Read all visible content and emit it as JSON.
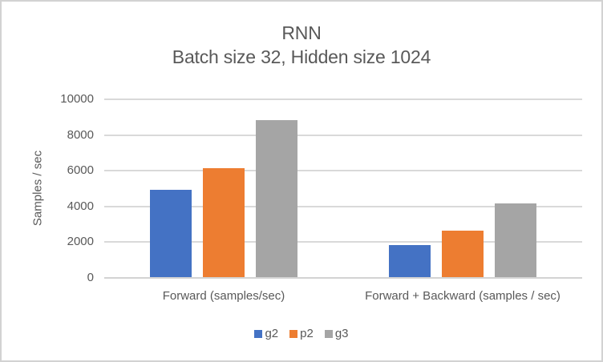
{
  "chart_data": {
    "type": "bar",
    "title": "RNN",
    "subtitle": "Batch size 32, Hidden size 1024",
    "ylabel": "Samples / sec",
    "xlabel": "",
    "categories": [
      "Forward (samples/sec)",
      "Forward + Backward (samples / sec)"
    ],
    "series": [
      {
        "name": "g2",
        "color": "#4472C4",
        "values": [
          4950,
          1850
        ]
      },
      {
        "name": "p2",
        "color": "#ED7D31",
        "values": [
          6150,
          2650
        ]
      },
      {
        "name": "g3",
        "color": "#A5A5A5",
        "values": [
          8850,
          4180
        ]
      }
    ],
    "ylim": [
      0,
      10000
    ],
    "yticks": [
      0,
      2000,
      4000,
      6000,
      8000,
      10000
    ],
    "grid": true,
    "legend_position": "bottom",
    "text_color": "#595959",
    "gridline_color": "#D9D9D9"
  }
}
